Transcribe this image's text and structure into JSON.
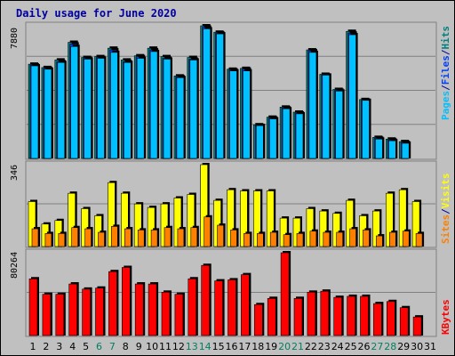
{
  "chart_data": [
    {
      "type": "bar",
      "title": "Daily usage for June 2020",
      "panel": "top",
      "ymax_label": "7880",
      "legend": [
        {
          "label": "Pages",
          "color": "#00c0ff"
        },
        {
          "label": "/",
          "color": "#0000a0"
        },
        {
          "label": "Files",
          "color": "#0040ff"
        },
        {
          "label": "/",
          "color": "#0000a0"
        },
        {
          "label": "Hits",
          "color": "#008080"
        }
      ],
      "categories": [
        "1",
        "2",
        "3",
        "4",
        "5",
        "6",
        "7",
        "8",
        "9",
        "10",
        "11",
        "12",
        "13",
        "14",
        "15",
        "16",
        "17",
        "18",
        "19",
        "20",
        "21",
        "22",
        "23",
        "24",
        "25",
        "26",
        "27",
        "28",
        "29",
        "30",
        "31"
      ],
      "weekend_days": [
        "6",
        "7",
        "13",
        "14",
        "20",
        "21",
        "27",
        "28"
      ],
      "series": [
        {
          "name": "Hits",
          "color": "#008080",
          "values": [
            5600,
            5400,
            5850,
            6900,
            6000,
            6050,
            6550,
            5850,
            6100,
            6550,
            6050,
            4900,
            6000,
            7880,
            7500,
            5300,
            5350,
            2000,
            2450,
            3050,
            2750,
            6450,
            5000,
            4100,
            7550,
            3500,
            1250,
            1150,
            1000,
            0,
            0
          ]
        },
        {
          "name": "Files",
          "color": "#0040ff",
          "values": [
            5550,
            5350,
            5750,
            6800,
            5950,
            6000,
            6450,
            5750,
            6050,
            6450,
            5950,
            4850,
            5900,
            7800,
            7450,
            5250,
            5300,
            1950,
            2400,
            3000,
            2700,
            6400,
            4950,
            4050,
            7450,
            3450,
            1200,
            1100,
            950,
            0,
            0
          ]
        },
        {
          "name": "Pages",
          "color": "#00c0ff",
          "values": [
            5500,
            5300,
            5700,
            6650,
            5900,
            5950,
            6300,
            5700,
            5950,
            6350,
            5900,
            4800,
            5850,
            7700,
            7400,
            5200,
            5200,
            1950,
            2350,
            2950,
            2650,
            6300,
            4950,
            4000,
            7350,
            3450,
            1150,
            1050,
            900,
            0,
            0
          ]
        }
      ]
    },
    {
      "type": "bar",
      "panel": "middle",
      "ymax_label": "346",
      "legend": [
        {
          "label": "Sites",
          "color": "#ff8000"
        },
        {
          "label": "/",
          "color": "#0000a0"
        },
        {
          "label": "Visits",
          "color": "#ffff00"
        }
      ],
      "categories": [
        "1",
        "2",
        "3",
        "4",
        "5",
        "6",
        "7",
        "8",
        "9",
        "10",
        "11",
        "12",
        "13",
        "14",
        "15",
        "16",
        "17",
        "18",
        "19",
        "20",
        "21",
        "22",
        "23",
        "24",
        "25",
        "26",
        "27",
        "28",
        "29",
        "30",
        "31"
      ],
      "series": [
        {
          "name": "Visits",
          "color": "#ffff00",
          "values": [
            190,
            95,
            110,
            225,
            160,
            130,
            270,
            225,
            180,
            165,
            180,
            205,
            220,
            346,
            195,
            240,
            235,
            235,
            235,
            120,
            120,
            160,
            150,
            140,
            195,
            130,
            150,
            225,
            240,
            190,
            0
          ]
        },
        {
          "name": "Sites",
          "color": "#ff8000",
          "values": [
            75,
            55,
            55,
            80,
            75,
            60,
            85,
            75,
            70,
            70,
            80,
            75,
            80,
            125,
            90,
            70,
            55,
            55,
            60,
            50,
            55,
            65,
            60,
            60,
            75,
            70,
            45,
            60,
            65,
            55,
            0
          ]
        }
      ]
    },
    {
      "type": "bar",
      "panel": "bottom",
      "ymax_label": "80264",
      "legend": [
        {
          "label": "KBytes",
          "color": "#ff0000"
        }
      ],
      "categories": [
        "1",
        "2",
        "3",
        "4",
        "5",
        "6",
        "7",
        "8",
        "9",
        "10",
        "11",
        "12",
        "13",
        "14",
        "15",
        "16",
        "17",
        "18",
        "19",
        "20",
        "21",
        "22",
        "23",
        "24",
        "25",
        "26",
        "27",
        "28",
        "29",
        "30",
        "31"
      ],
      "series": [
        {
          "name": "KBytes",
          "color": "#ff0000",
          "values": [
            55000,
            40000,
            40000,
            50000,
            45000,
            46000,
            62000,
            66000,
            50000,
            50000,
            42000,
            40000,
            55000,
            68000,
            53000,
            54000,
            59000,
            30000,
            36000,
            80264,
            36000,
            42000,
            43000,
            37000,
            38000,
            38000,
            31000,
            33000,
            27000,
            18000,
            0
          ]
        }
      ]
    }
  ]
}
